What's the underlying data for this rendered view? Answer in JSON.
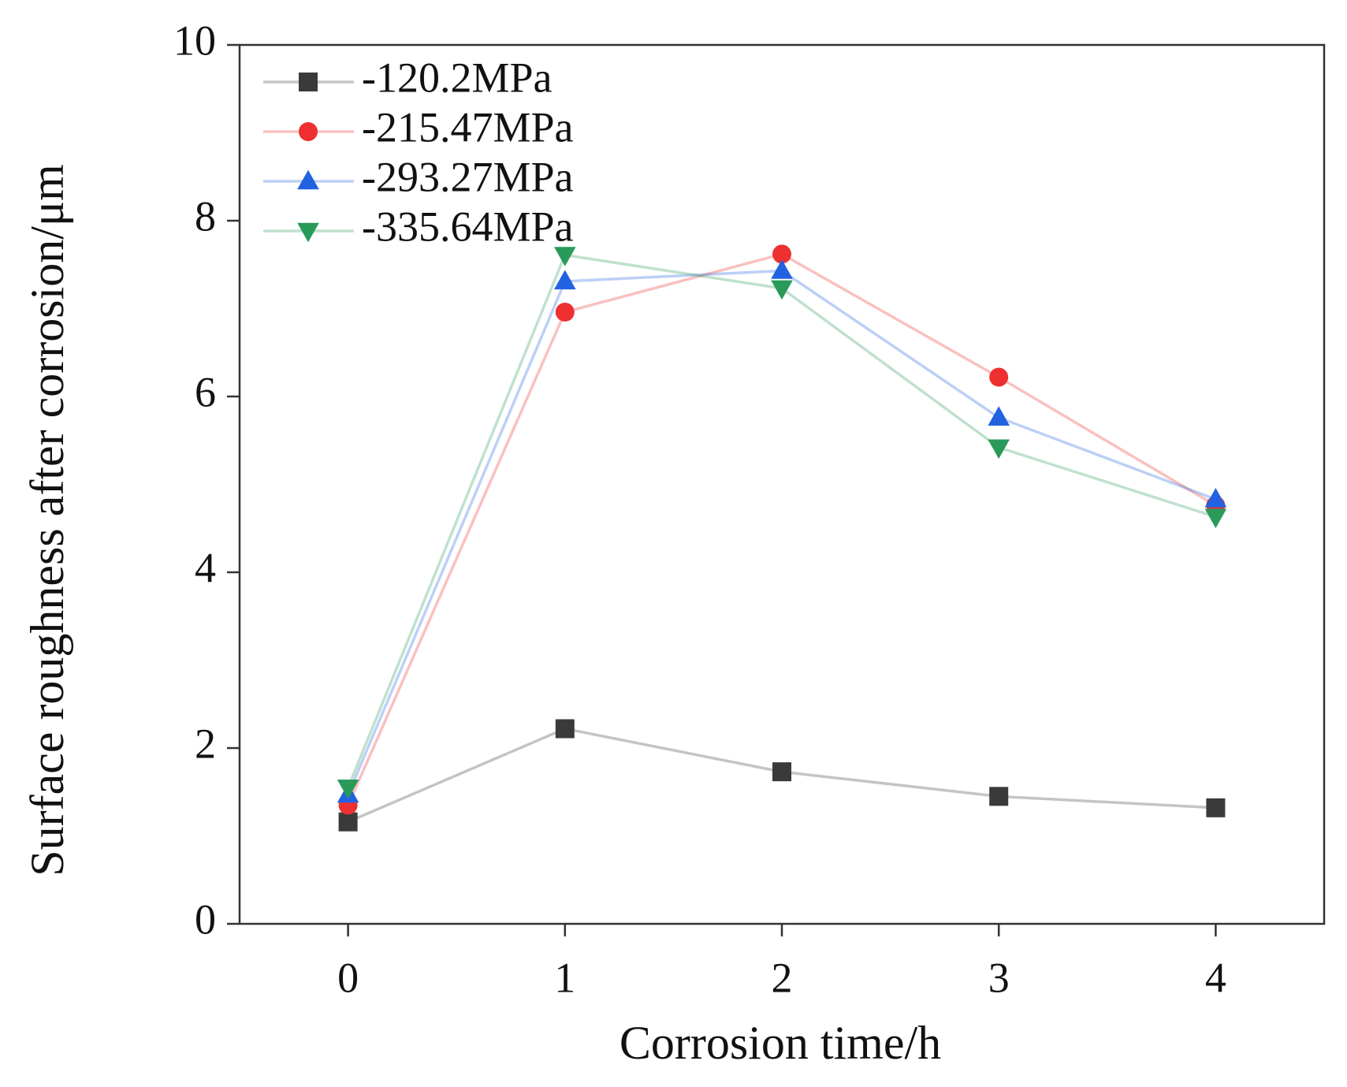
{
  "chart_data": {
    "type": "line",
    "xlabel": "Corrosion time/h",
    "ylabel": "Surface roughness after corrosion/μm",
    "x": [
      0,
      1,
      2,
      3,
      4
    ],
    "xlim": [
      -0.5,
      4.5
    ],
    "xticks": [
      0,
      1,
      2,
      3,
      4
    ],
    "ylim": [
      0,
      10
    ],
    "yticks": [
      0,
      2,
      4,
      6,
      8,
      10
    ],
    "legend": "upper-left",
    "series": [
      {
        "name": "-120.2MPa",
        "color": "#3a3a3a",
        "marker": "square",
        "values": [
          1.16,
          2.22,
          1.73,
          1.45,
          1.32
        ]
      },
      {
        "name": "-215.47MPa",
        "color": "#ee3030",
        "marker": "circle",
        "values": [
          1.35,
          6.96,
          7.62,
          6.22,
          4.76
        ]
      },
      {
        "name": "-293.27MPa",
        "color": "#2262e0",
        "marker": "triangle-up",
        "values": [
          1.47,
          7.31,
          7.43,
          5.76,
          4.83
        ]
      },
      {
        "name": "-335.64MPa",
        "color": "#2a9a5a",
        "marker": "triangle-down",
        "values": [
          1.55,
          7.61,
          7.23,
          5.42,
          4.63
        ]
      }
    ]
  }
}
